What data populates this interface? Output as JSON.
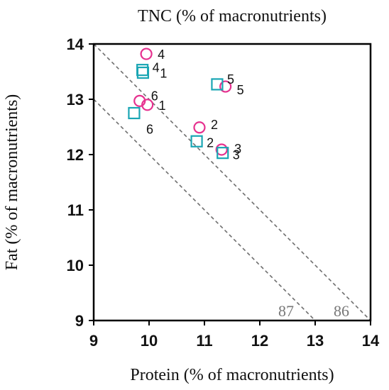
{
  "chart_data": {
    "type": "scatter",
    "title": "TNC (% of macronutrients)",
    "xlabel": "Protein (% of macronutrients)",
    "ylabel": "Fat (% of macronutrients)",
    "xlim": [
      9,
      14
    ],
    "ylim": [
      9,
      14
    ],
    "xticks": [
      "9",
      "10",
      "11",
      "12",
      "13",
      "14"
    ],
    "yticks": [
      "9",
      "10",
      "11",
      "12",
      "13",
      "14"
    ],
    "grid": false,
    "colors": {
      "circle": "#e6318f",
      "square": "#1aa6b4",
      "isoline": "#6e6e6e"
    },
    "series": [
      {
        "marker": "circle",
        "points": [
          {
            "x": 9.95,
            "y": 13.82,
            "label": "4"
          },
          {
            "x": 11.38,
            "y": 13.23,
            "label": "5"
          },
          {
            "x": 9.83,
            "y": 12.97,
            "label": "6"
          },
          {
            "x": 9.97,
            "y": 12.9,
            "label": "1"
          },
          {
            "x": 10.91,
            "y": 12.49,
            "label": "2"
          },
          {
            "x": 11.31,
            "y": 12.09,
            "label": "3"
          }
        ]
      },
      {
        "marker": "square",
        "points": [
          {
            "x": 9.88,
            "y": 13.53,
            "label": "4"
          },
          {
            "x": 9.89,
            "y": 13.48,
            "label": "1"
          },
          {
            "x": 11.23,
            "y": 13.27,
            "label": "5"
          },
          {
            "x": 9.73,
            "y": 12.75,
            "label": "6"
          },
          {
            "x": 10.86,
            "y": 12.24,
            "label": "2"
          },
          {
            "x": 11.33,
            "y": 12.03,
            "label": "3"
          }
        ]
      }
    ],
    "isolines": [
      {
        "label": "87",
        "total": 22
      },
      {
        "label": "86",
        "total": 23
      }
    ]
  }
}
